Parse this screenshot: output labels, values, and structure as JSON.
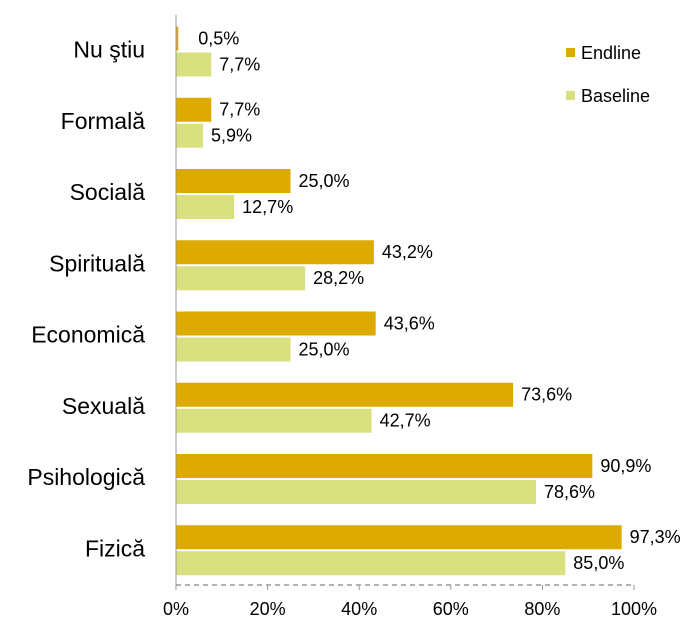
{
  "chart_data": {
    "type": "bar",
    "orientation": "horizontal",
    "categories": [
      "Nu ştiu",
      "Formală",
      "Socială",
      "Spirituală",
      "Economică",
      "Sexuală",
      "Psihologică",
      "Fizică"
    ],
    "series": [
      {
        "name": "Endline",
        "color": "#dcaa00",
        "values": [
          0.5,
          7.7,
          25.0,
          43.2,
          43.6,
          73.6,
          90.9,
          97.3
        ],
        "value_labels": [
          "0,5%",
          "7,7%",
          "25,0%",
          "43,2%",
          "43,6%",
          "73,6%",
          "90,9%",
          "97,3%"
        ]
      },
      {
        "name": "Baseline",
        "color": "#d9e07f",
        "values": [
          7.7,
          5.9,
          12.7,
          28.2,
          25.0,
          42.7,
          78.6,
          85.0
        ],
        "value_labels": [
          "7,7%",
          "5,9%",
          "12,7%",
          "28,2%",
          "25,0%",
          "42,7%",
          "78,6%",
          "85,0%"
        ]
      }
    ],
    "xlim": [
      0,
      100
    ],
    "xticks": [
      {
        "value": 0,
        "label": "0%"
      },
      {
        "value": 20,
        "label": "20%"
      },
      {
        "value": 40,
        "label": "40%"
      },
      {
        "value": 60,
        "label": "60%"
      },
      {
        "value": 80,
        "label": "80%"
      },
      {
        "value": 100,
        "label": "100%"
      }
    ],
    "legend": "top-right"
  }
}
